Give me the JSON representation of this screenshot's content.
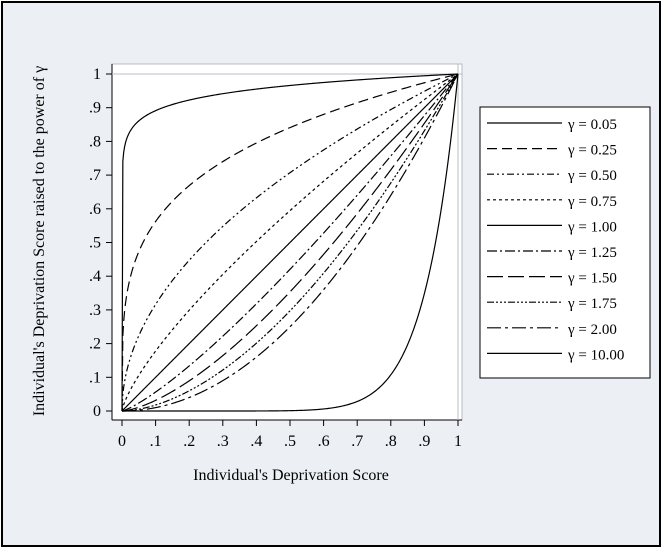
{
  "chart_data": {
    "type": "line",
    "title": "",
    "xlabel": "Individual's Deprivation Score",
    "ylabel": "Individual's Deprivation Score raised to the power of γ",
    "xlim": [
      0,
      1
    ],
    "ylim": [
      0,
      1
    ],
    "x_ticks": [
      "0",
      ".1",
      ".2",
      ".3",
      ".4",
      ".5",
      ".6",
      ".7",
      ".8",
      ".9",
      "1"
    ],
    "y_ticks": [
      "0",
      ".1",
      ".2",
      ".3",
      ".4",
      ".5",
      ".6",
      ".7",
      ".8",
      ".9",
      "1"
    ],
    "grid": false,
    "legend_position": "right",
    "x": [
      0,
      0.05,
      0.1,
      0.15,
      0.2,
      0.25,
      0.3,
      0.35,
      0.4,
      0.45,
      0.5,
      0.55,
      0.6,
      0.65,
      0.7,
      0.75,
      0.8,
      0.85,
      0.9,
      0.95,
      1
    ],
    "series": [
      {
        "name": "γ = 0.05",
        "gamma": 0.05,
        "dash": "",
        "y": [
          0,
          0.861,
          0.891,
          0.909,
          0.923,
          0.933,
          0.942,
          0.949,
          0.955,
          0.961,
          0.966,
          0.971,
          0.975,
          0.979,
          0.982,
          0.986,
          0.989,
          0.992,
          0.995,
          0.997,
          1
        ]
      },
      {
        "name": "γ = 0.25",
        "gamma": 0.25,
        "dash": "10,5",
        "y": [
          0,
          0.473,
          0.562,
          0.622,
          0.669,
          0.707,
          0.74,
          0.769,
          0.795,
          0.819,
          0.841,
          0.861,
          0.88,
          0.898,
          0.915,
          0.931,
          0.946,
          0.96,
          0.974,
          0.987,
          1
        ]
      },
      {
        "name": "γ = 0.50",
        "gamma": 0.5,
        "dash": "7,3,2,3,2,3",
        "y": [
          0,
          0.224,
          0.316,
          0.387,
          0.447,
          0.5,
          0.548,
          0.592,
          0.632,
          0.671,
          0.707,
          0.742,
          0.775,
          0.806,
          0.837,
          0.866,
          0.894,
          0.922,
          0.949,
          0.975,
          1
        ]
      },
      {
        "name": "γ = 0.75",
        "gamma": 0.75,
        "dash": "3,3",
        "y": [
          0,
          0.106,
          0.178,
          0.241,
          0.299,
          0.354,
          0.406,
          0.455,
          0.503,
          0.549,
          0.595,
          0.639,
          0.682,
          0.724,
          0.765,
          0.806,
          0.846,
          0.885,
          0.924,
          0.962,
          1
        ]
      },
      {
        "name": "γ = 1.00",
        "gamma": 1,
        "dash": "",
        "y": [
          0,
          0.05,
          0.1,
          0.15,
          0.2,
          0.25,
          0.3,
          0.35,
          0.4,
          0.45,
          0.5,
          0.55,
          0.6,
          0.65,
          0.7,
          0.75,
          0.8,
          0.85,
          0.9,
          0.95,
          1
        ]
      },
      {
        "name": "γ = 1.25",
        "gamma": 1.25,
        "dash": "10,3,2,3",
        "y": [
          0,
          0.024,
          0.056,
          0.093,
          0.134,
          0.177,
          0.222,
          0.269,
          0.318,
          0.368,
          0.42,
          0.474,
          0.528,
          0.584,
          0.64,
          0.697,
          0.756,
          0.816,
          0.877,
          0.938,
          1
        ]
      },
      {
        "name": "γ = 1.50",
        "gamma": 1.5,
        "dash": "16,5",
        "y": [
          0,
          0.011,
          0.032,
          0.058,
          0.089,
          0.125,
          0.164,
          0.207,
          0.253,
          0.302,
          0.354,
          0.408,
          0.465,
          0.524,
          0.586,
          0.65,
          0.716,
          0.784,
          0.854,
          0.926,
          1
        ]
      },
      {
        "name": "γ = 1.75",
        "gamma": 1.75,
        "dash": "7,2,2,2,2,2,2,2",
        "y": [
          0,
          0.005,
          0.018,
          0.036,
          0.06,
          0.088,
          0.122,
          0.159,
          0.201,
          0.247,
          0.297,
          0.351,
          0.409,
          0.47,
          0.536,
          0.604,
          0.677,
          0.752,
          0.832,
          0.914,
          1
        ]
      },
      {
        "name": "γ = 2.00",
        "gamma": 2,
        "dash": "14,4,3,4",
        "y": [
          0,
          0.003,
          0.01,
          0.023,
          0.04,
          0.063,
          0.09,
          0.123,
          0.16,
          0.203,
          0.25,
          0.303,
          0.36,
          0.423,
          0.49,
          0.563,
          0.64,
          0.723,
          0.81,
          0.903,
          1
        ]
      },
      {
        "name": "γ = 10.00",
        "gamma": 10,
        "dash": "",
        "y": [
          0,
          0,
          0,
          0,
          0,
          0,
          0,
          0,
          0,
          0,
          0.001,
          0.003,
          0.006,
          0.013,
          0.028,
          0.056,
          0.107,
          0.197,
          0.349,
          0.599,
          1
        ]
      }
    ]
  }
}
